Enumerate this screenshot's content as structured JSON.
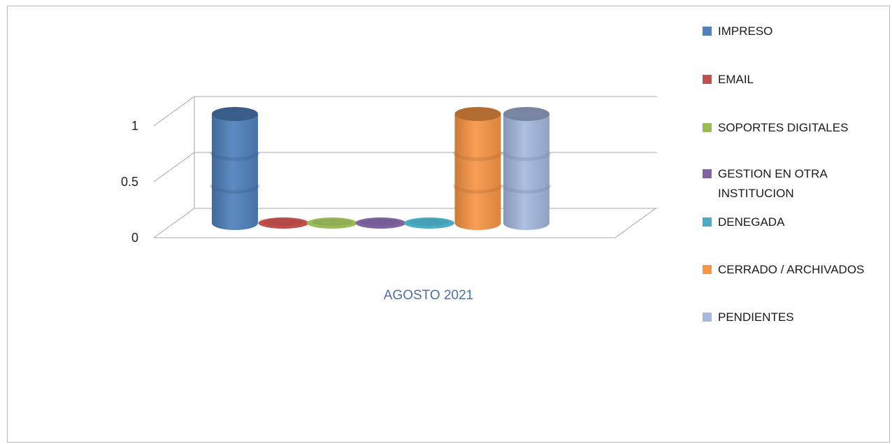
{
  "chart_data": {
    "type": "bar",
    "style": "3d-cylinder",
    "categories": [
      "AGOSTO 2021"
    ],
    "series": [
      {
        "name": "IMPRESO",
        "values": [
          1
        ],
        "color": "#4f81bd"
      },
      {
        "name": "EMAIL",
        "values": [
          0
        ],
        "color": "#c0504d"
      },
      {
        "name": "SOPORTES DIGITALES",
        "values": [
          0
        ],
        "color": "#9bbb59"
      },
      {
        "name": "GESTION EN OTRA INSTITUCION",
        "values": [
          0
        ],
        "color": "#8064a2"
      },
      {
        "name": "DENEGADA",
        "values": [
          0
        ],
        "color": "#4bacc6"
      },
      {
        "name": "CERRADO / ARCHIVADOS",
        "values": [
          1
        ],
        "color": "#f79646"
      },
      {
        "name": "PENDIENTES",
        "values": [
          1
        ],
        "color": "#a5b9de"
      }
    ],
    "y_ticks": [
      "0",
      "0.5",
      "1"
    ],
    "ylim": [
      0,
      1
    ],
    "grid": true,
    "legend_position": "right",
    "title": "",
    "xlabel": "",
    "ylabel": ""
  }
}
